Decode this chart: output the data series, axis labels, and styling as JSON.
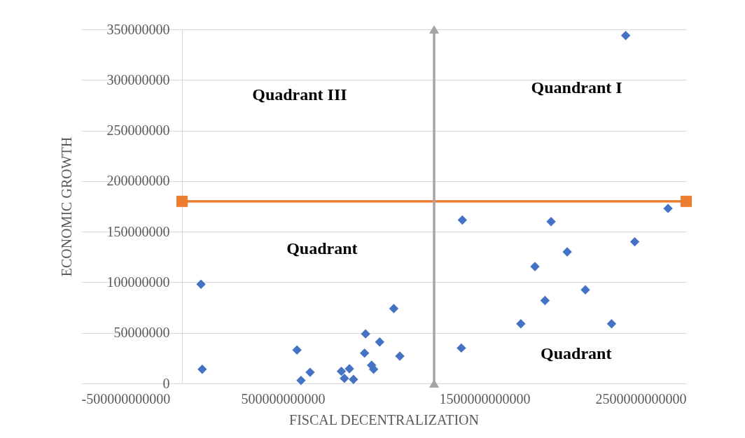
{
  "chart_data": {
    "type": "scatter",
    "xlabel": "FISCAL DECENTRALIZATION",
    "ylabel": "ECONOMIC GROWTH",
    "marker": "diamond",
    "grid": "y",
    "xlim": [
      -500000000000,
      2500000000000
    ],
    "xticks": [
      -500000000000,
      500000000000,
      1500000000000,
      2500000000000
    ],
    "ylim": [
      0,
      350000000
    ],
    "yticks": [
      0,
      50000000,
      100000000,
      150000000,
      200000000,
      250000000,
      300000000,
      350000000
    ],
    "series": [
      {
        "color": "#4472c4",
        "x": [
          94000000000,
          100000000000,
          570000000000,
          590000000000,
          635000000000,
          790000000000,
          805000000000,
          830000000000,
          850000000000,
          910000000000,
          905000000000,
          940000000000,
          950000000000,
          980000000000,
          1050000000000,
          1080000000000,
          1390000000000,
          1830000000000,
          2410000000000,
          2245000000000,
          1910000000000,
          1750000000000,
          2000000000000,
          1800000000000,
          1680000000000,
          2130000000000,
          1385000000000,
          2200000000000
        ],
        "values": [
          98000000,
          14000000,
          33000000,
          3000000,
          11000000,
          12000000,
          5000000,
          14500000,
          4000000,
          49000000,
          30000000,
          18000000,
          14000000,
          41000000,
          74000000,
          27000000,
          161500000,
          160000000,
          173000000,
          140000000,
          130000000,
          115500000,
          92500000,
          82000000,
          59000000,
          59000000,
          35000000,
          344000000
        ]
      },
      {
        "type": "line",
        "color": "#ed7d31",
        "marker": "square",
        "x": [
          0,
          2500000000000
        ],
        "values": [
          180000000,
          180000000
        ]
      },
      {
        "type": "line",
        "color": "#a5a5a5",
        "marker": "triangle",
        "x": [
          1250000000000,
          1250000000000
        ],
        "values": [
          0,
          350000000
        ]
      }
    ],
    "annotations": [
      "Quadrant III",
      "Quandrant I",
      "Quadrant",
      "Quadrant"
    ]
  }
}
